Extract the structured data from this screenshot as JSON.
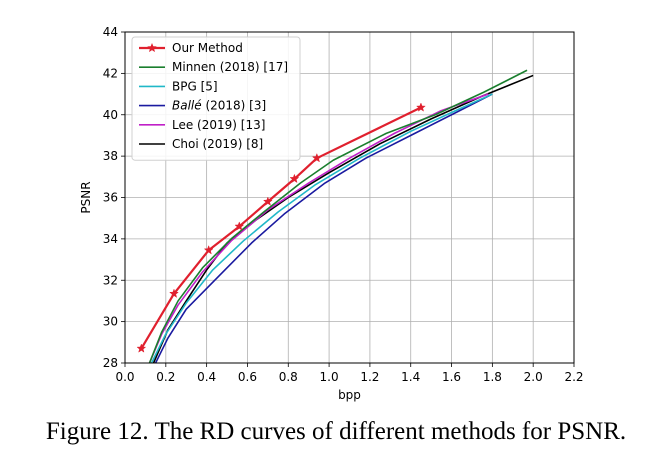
{
  "caption": "Figure 12. The RD curves of different methods for PSNR.",
  "chart_data": {
    "type": "line",
    "xlabel": "bpp",
    "ylabel": "PSNR",
    "xlim": [
      0.0,
      2.2
    ],
    "ylim": [
      28,
      44
    ],
    "xticks": [
      "0.0",
      "0.2",
      "0.4",
      "0.6",
      "0.8",
      "1.0",
      "1.2",
      "1.4",
      "1.6",
      "1.8",
      "2.0",
      "2.2"
    ],
    "yticks": [
      "28",
      "30",
      "32",
      "34",
      "36",
      "38",
      "40",
      "42",
      "44"
    ],
    "grid": true,
    "legend_position": "top-left",
    "series": [
      {
        "name": "Our Method",
        "color": "#e0202e",
        "marker": "star",
        "x": [
          0.08,
          0.24,
          0.41,
          0.56,
          0.7,
          0.83,
          0.94,
          1.45
        ],
        "y": [
          28.7,
          31.35,
          33.45,
          34.6,
          35.8,
          36.9,
          37.9,
          40.35
        ]
      },
      {
        "name": "Minnen (2018) [17]",
        "color": "#1a7f2e",
        "marker": "none",
        "x": [
          0.12,
          0.18,
          0.26,
          0.38,
          0.52,
          0.68,
          0.86,
          1.02,
          1.28,
          1.52,
          1.76,
          1.97
        ],
        "y": [
          28.0,
          29.5,
          31.0,
          32.6,
          34.0,
          35.3,
          36.7,
          37.8,
          39.1,
          40.0,
          41.1,
          42.15
        ]
      },
      {
        "name": "BPG [5]",
        "color": "#20b8c8",
        "marker": "none",
        "x": [
          0.13,
          0.2,
          0.3,
          0.43,
          0.58,
          0.75,
          0.93,
          1.15,
          1.4,
          1.62,
          1.8
        ],
        "y": [
          28.0,
          29.4,
          30.9,
          32.5,
          33.9,
          35.3,
          36.6,
          37.9,
          39.2,
          40.2,
          41.0
        ]
      },
      {
        "name": "Ballé (2018) [3]",
        "color": "#1a1aa0",
        "marker": "none",
        "x": [
          0.15,
          0.21,
          0.3,
          0.46,
          0.62,
          0.78,
          0.98,
          1.18,
          1.42,
          1.64,
          1.8
        ],
        "y": [
          28.0,
          29.2,
          30.6,
          32.2,
          33.8,
          35.2,
          36.7,
          37.9,
          39.1,
          40.2,
          41.0
        ]
      },
      {
        "name": "Lee (2019) [13]",
        "color": "#c020c8",
        "marker": "none",
        "x": [
          0.12,
          0.18,
          0.26,
          0.38,
          0.52,
          0.7,
          0.9,
          1.1,
          1.32,
          1.55,
          1.78
        ],
        "y": [
          28.0,
          29.4,
          30.8,
          32.4,
          33.9,
          35.4,
          36.7,
          37.9,
          39.1,
          40.2,
          41.0
        ]
      },
      {
        "name": "Choi (2019) [8]",
        "color": "#000000",
        "marker": "none",
        "x": [
          0.14,
          0.21,
          0.3,
          0.4,
          0.5,
          0.64,
          0.8,
          1.0,
          1.25,
          1.5,
          1.75,
          2.0
        ],
        "y": [
          28.0,
          29.6,
          31.0,
          32.5,
          33.8,
          34.9,
          36.0,
          37.2,
          38.6,
          39.8,
          40.9,
          41.9
        ]
      }
    ]
  }
}
